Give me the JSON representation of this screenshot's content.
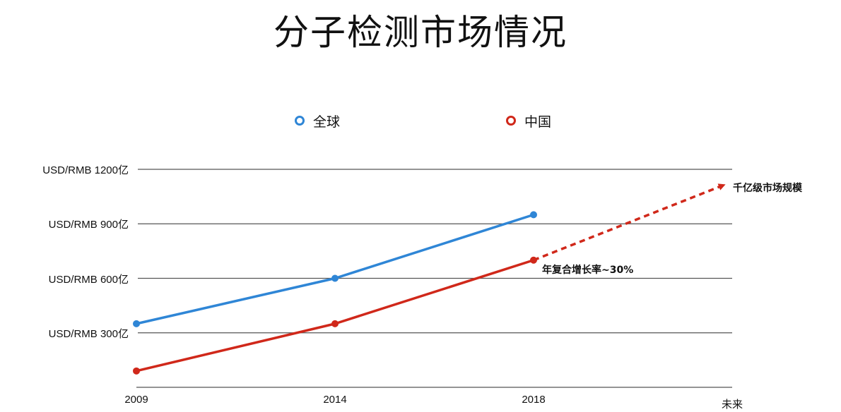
{
  "title": "分子检测市场情况",
  "legend": {
    "global_label": "全球",
    "china_label": "中国"
  },
  "colors": {
    "global": "#2f86d6",
    "china": "#d0281a",
    "grid": "#555555"
  },
  "annotations": {
    "cagr": "年复合增长率~30%",
    "scale": "千亿级市场规模"
  },
  "chart_data": {
    "type": "line",
    "title": "分子检测市场情况",
    "categories": [
      "2009",
      "2014",
      "2018",
      "未来"
    ],
    "y_tick_labels": [
      "USD/RMB 300亿",
      "USD/RMB 600亿",
      "USD/RMB 900亿",
      "USD/RMB 1200亿"
    ],
    "y_ticks": [
      300,
      600,
      900,
      1200
    ],
    "ylim": [
      0,
      1200
    ],
    "grid": true,
    "legend_position": "top",
    "series": [
      {
        "name": "全球",
        "values": [
          350,
          600,
          950,
          null
        ]
      },
      {
        "name": "中国",
        "values": [
          90,
          350,
          700,
          null
        ]
      }
    ],
    "projection": {
      "series": "中国",
      "from": "2018",
      "to": "未来",
      "from_value": 700,
      "to_value": 1110,
      "style": "dashed-arrow"
    }
  }
}
